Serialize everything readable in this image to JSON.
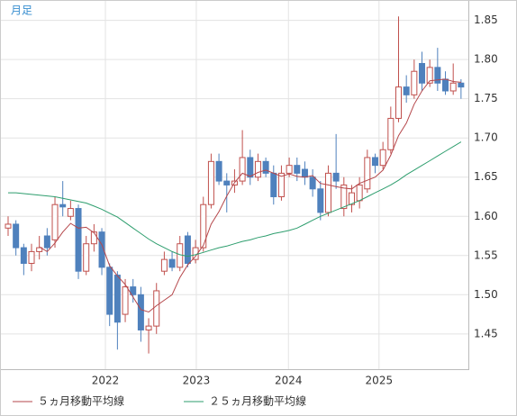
{
  "chart_data": {
    "type": "candlestick",
    "title": "月足",
    "categories": [
      null,
      null,
      null,
      null,
      null,
      null,
      null,
      null,
      null,
      null,
      null,
      null,
      null,
      null,
      null,
      null,
      null,
      null,
      null,
      null,
      null,
      null,
      null,
      null,
      null,
      null,
      null,
      null,
      null,
      null,
      null,
      null,
      null,
      null,
      null,
      null,
      null,
      null,
      null,
      null,
      null,
      null,
      null,
      null,
      null,
      null,
      null,
      null,
      null,
      null,
      null,
      null,
      null,
      null,
      null,
      null,
      null,
      null,
      null
    ],
    "open": [
      1.585,
      1.59,
      1.56,
      1.54,
      1.555,
      1.575,
      1.57,
      1.615,
      1.6,
      1.61,
      1.53,
      1.565,
      1.58,
      1.535,
      1.525,
      1.475,
      1.51,
      1.5,
      1.455,
      1.46,
      1.53,
      1.545,
      1.535,
      1.575,
      1.545,
      1.56,
      1.615,
      1.67,
      1.645,
      1.64,
      1.645,
      1.675,
      1.65,
      1.67,
      1.655,
      1.625,
      1.655,
      1.665,
      1.66,
      1.65,
      1.635,
      1.605,
      1.655,
      1.61,
      1.615,
      1.62,
      1.635,
      1.675,
      1.665,
      1.685,
      1.725,
      1.765,
      1.755,
      1.795,
      1.77,
      1.79,
      1.775,
      1.76,
      1.77
    ],
    "high": [
      1.6,
      1.595,
      1.565,
      1.565,
      1.575,
      1.585,
      1.625,
      1.645,
      1.62,
      1.615,
      1.575,
      1.59,
      1.585,
      1.54,
      1.53,
      1.52,
      1.52,
      1.51,
      1.47,
      1.515,
      1.555,
      1.555,
      1.575,
      1.58,
      1.57,
      1.625,
      1.68,
      1.68,
      1.655,
      1.66,
      1.71,
      1.685,
      1.68,
      1.675,
      1.665,
      1.665,
      1.675,
      1.675,
      1.67,
      1.66,
      1.645,
      1.665,
      1.705,
      1.65,
      1.64,
      1.65,
      1.685,
      1.68,
      1.695,
      1.74,
      1.855,
      1.78,
      1.8,
      1.81,
      1.8,
      1.815,
      1.785,
      1.795,
      1.775
    ],
    "low": [
      1.575,
      1.55,
      1.525,
      1.53,
      1.545,
      1.55,
      1.56,
      1.6,
      1.595,
      1.52,
      1.525,
      1.555,
      1.525,
      1.46,
      1.43,
      1.465,
      1.49,
      1.44,
      1.425,
      1.45,
      1.525,
      1.53,
      1.53,
      1.535,
      1.54,
      1.555,
      1.61,
      1.64,
      1.605,
      1.63,
      1.64,
      1.64,
      1.645,
      1.65,
      1.615,
      1.62,
      1.65,
      1.645,
      1.64,
      1.625,
      1.595,
      1.6,
      1.635,
      1.6,
      1.605,
      1.61,
      1.63,
      1.655,
      1.66,
      1.68,
      1.72,
      1.745,
      1.75,
      1.76,
      1.765,
      1.76,
      1.755,
      1.755,
      1.75
    ],
    "close": [
      1.59,
      1.56,
      1.54,
      1.555,
      1.56,
      1.56,
      1.615,
      1.612,
      1.61,
      1.53,
      1.565,
      1.58,
      1.535,
      1.475,
      1.465,
      1.51,
      1.5,
      1.455,
      1.46,
      1.505,
      1.545,
      1.535,
      1.565,
      1.54,
      1.56,
      1.615,
      1.67,
      1.645,
      1.64,
      1.645,
      1.675,
      1.65,
      1.67,
      1.655,
      1.625,
      1.655,
      1.665,
      1.655,
      1.65,
      1.635,
      1.605,
      1.655,
      1.645,
      1.64,
      1.63,
      1.64,
      1.675,
      1.665,
      1.685,
      1.725,
      1.765,
      1.755,
      1.785,
      1.77,
      1.79,
      1.77,
      1.76,
      1.77,
      1.765
    ],
    "up_color": "#c0504d",
    "down_color": "#4f81bd",
    "series": [
      {
        "name": "５ヵ月移動平均線",
        "color": "#b5474b",
        "values": [
          null,
          null,
          null,
          null,
          1.561,
          1.555,
          1.566,
          1.58,
          1.591,
          1.585,
          1.586,
          1.579,
          1.564,
          1.537,
          1.524,
          1.513,
          1.497,
          1.481,
          1.478,
          1.486,
          1.493,
          1.5,
          1.522,
          1.538,
          1.549,
          1.563,
          1.59,
          1.606,
          1.626,
          1.643,
          1.655,
          1.651,
          1.656,
          1.659,
          1.655,
          1.651,
          1.654,
          1.651,
          1.65,
          1.652,
          1.642,
          1.64,
          1.638,
          1.636,
          1.635,
          1.642,
          1.646,
          1.65,
          1.659,
          1.678,
          1.703,
          1.719,
          1.743,
          1.76,
          1.773,
          1.774,
          1.775,
          1.772,
          1.771
        ]
      },
      {
        "name": "２５ヵ月移動平均線",
        "color": "#2e9e6e",
        "values": [
          1.63,
          1.63,
          1.629,
          1.628,
          1.627,
          1.626,
          1.625,
          1.623,
          1.621,
          1.619,
          1.617,
          1.613,
          1.609,
          1.604,
          1.599,
          1.592,
          1.585,
          1.578,
          1.571,
          1.565,
          1.56,
          1.555,
          1.551,
          1.549,
          1.551,
          1.554,
          1.557,
          1.56,
          1.562,
          1.565,
          1.568,
          1.57,
          1.573,
          1.575,
          1.578,
          1.58,
          1.582,
          1.585,
          1.59,
          1.595,
          1.6,
          1.604,
          1.608,
          1.612,
          1.616,
          1.62,
          1.625,
          1.63,
          1.635,
          1.64,
          1.646,
          1.653,
          1.659,
          1.665,
          1.671,
          1.677,
          1.683,
          1.689,
          1.695
        ]
      }
    ],
    "ylim": [
      1.405,
      1.876
    ],
    "yticks": [
      {
        "value": 1.45,
        "label": "1.45"
      },
      {
        "value": 1.5,
        "label": "1.50"
      },
      {
        "value": 1.55,
        "label": "1.55"
      },
      {
        "value": 1.6,
        "label": "1.60"
      },
      {
        "value": 1.65,
        "label": "1.65"
      },
      {
        "value": 1.7,
        "label": "1.70"
      },
      {
        "value": 1.75,
        "label": "1.75"
      },
      {
        "value": 1.8,
        "label": "1.80"
      },
      {
        "value": 1.85,
        "label": "1.85"
      }
    ],
    "xticks": [
      {
        "value": 12.46,
        "label": "2022"
      },
      {
        "value": 24.1,
        "label": "2023"
      },
      {
        "value": 35.9,
        "label": "2024"
      },
      {
        "value": 47.5,
        "label": "2025"
      }
    ],
    "grid": true
  }
}
